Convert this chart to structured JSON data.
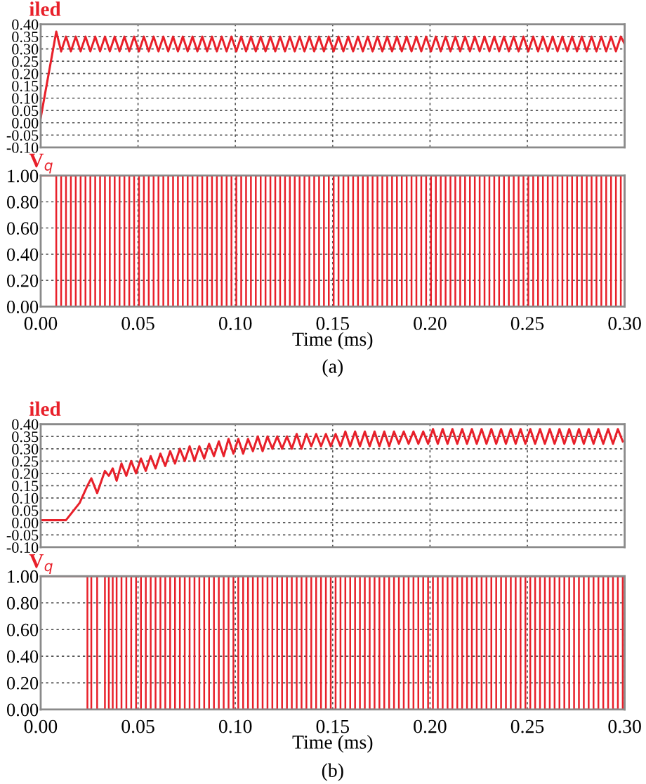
{
  "chart_data": [
    {
      "type": "line",
      "title": "iled",
      "xlim": [
        0,
        0.3
      ],
      "ylim": [
        -0.1,
        0.4
      ],
      "grid": true,
      "tick_labels": "y",
      "xticks": [
        {
          "value": 0,
          "label": null
        },
        {
          "value": 0.05,
          "label": null
        },
        {
          "value": 0.1,
          "label": null
        },
        {
          "value": 0.15,
          "label": null
        },
        {
          "value": 0.2,
          "label": null
        },
        {
          "value": 0.25,
          "label": null
        },
        {
          "value": 0.3,
          "label": null
        }
      ],
      "yticks": [
        {
          "value": -0.1,
          "label": "-0.10"
        },
        {
          "value": -0.05,
          "label": "-0.05"
        },
        {
          "value": 0,
          "label": "0.00"
        },
        {
          "value": 0.05,
          "label": "0.05"
        },
        {
          "value": 0.1,
          "label": "0.10"
        },
        {
          "value": 0.15,
          "label": "0.15"
        },
        {
          "value": 0.2,
          "label": "0.20"
        },
        {
          "value": 0.25,
          "label": "0.25"
        },
        {
          "value": 0.3,
          "label": "0.30"
        },
        {
          "value": 0.35,
          "label": "0.35"
        },
        {
          "value": 0.4,
          "label": "0.40"
        }
      ],
      "x": [
        0,
        0.008,
        0.0105,
        0.013,
        0.0155,
        0.018,
        0.0205,
        0.023,
        0.0255,
        0.028,
        0.0305,
        0.033,
        0.0355,
        0.038,
        0.0405,
        0.043,
        0.0455,
        0.048,
        0.0505,
        0.053,
        0.0555,
        0.058,
        0.0605,
        0.063,
        0.0655,
        0.068,
        0.0705,
        0.073,
        0.0755,
        0.078,
        0.0805,
        0.083,
        0.0855,
        0.088,
        0.0905,
        0.093,
        0.0955,
        0.098,
        0.1005,
        0.103,
        0.1055,
        0.108,
        0.1105,
        0.113,
        0.1155,
        0.118,
        0.1205,
        0.123,
        0.1255,
        0.128,
        0.1305,
        0.133,
        0.1355,
        0.138,
        0.1405,
        0.143,
        0.1455,
        0.148,
        0.1505,
        0.153,
        0.1555,
        0.158,
        0.1605,
        0.163,
        0.1655,
        0.168,
        0.1705,
        0.173,
        0.1755,
        0.178,
        0.1805,
        0.183,
        0.1855,
        0.188,
        0.1905,
        0.193,
        0.1955,
        0.198,
        0.2005,
        0.203,
        0.2055,
        0.208,
        0.2105,
        0.213,
        0.2155,
        0.218,
        0.2205,
        0.223,
        0.2255,
        0.228,
        0.2305,
        0.233,
        0.2355,
        0.238,
        0.2405,
        0.243,
        0.2455,
        0.248,
        0.2505,
        0.253,
        0.2555,
        0.258,
        0.2605,
        0.263,
        0.2655,
        0.268,
        0.2705,
        0.273,
        0.2755,
        0.278,
        0.2805,
        0.283,
        0.2855,
        0.288,
        0.2905,
        0.293,
        0.2955,
        0.298,
        0.3
      ],
      "series": [
        {
          "color": "#e8202a",
          "values": [
            0.02,
            0.37,
            0.29,
            0.35,
            0.29,
            0.35,
            0.29,
            0.35,
            0.29,
            0.35,
            0.29,
            0.35,
            0.29,
            0.35,
            0.29,
            0.35,
            0.29,
            0.35,
            0.29,
            0.35,
            0.29,
            0.35,
            0.29,
            0.35,
            0.29,
            0.35,
            0.29,
            0.35,
            0.29,
            0.35,
            0.29,
            0.35,
            0.29,
            0.35,
            0.29,
            0.35,
            0.29,
            0.35,
            0.29,
            0.35,
            0.29,
            0.35,
            0.29,
            0.35,
            0.29,
            0.35,
            0.29,
            0.35,
            0.29,
            0.35,
            0.29,
            0.35,
            0.29,
            0.35,
            0.29,
            0.35,
            0.29,
            0.35,
            0.29,
            0.35,
            0.29,
            0.35,
            0.29,
            0.35,
            0.29,
            0.35,
            0.29,
            0.35,
            0.29,
            0.35,
            0.29,
            0.35,
            0.29,
            0.35,
            0.29,
            0.35,
            0.29,
            0.35,
            0.29,
            0.35,
            0.29,
            0.35,
            0.29,
            0.35,
            0.29,
            0.35,
            0.29,
            0.35,
            0.29,
            0.35,
            0.29,
            0.35,
            0.29,
            0.35,
            0.29,
            0.35,
            0.29,
            0.35,
            0.29,
            0.35,
            0.29,
            0.35,
            0.29,
            0.35,
            0.29,
            0.35,
            0.29,
            0.35,
            0.29,
            0.35,
            0.29,
            0.35,
            0.29,
            0.35,
            0.29,
            0.35,
            0.29,
            0.35,
            0.32
          ]
        }
      ]
    },
    {
      "type": "step",
      "title": "V$_{q}$",
      "xlabel": "Time (ms)",
      "annotations": [
        "(a)"
      ],
      "xlim": [
        0,
        0.3
      ],
      "ylim": [
        0,
        1
      ],
      "grid": true,
      "xticks": [
        {
          "value": 0,
          "label": "0.00"
        },
        {
          "value": 0.05,
          "label": "0.05"
        },
        {
          "value": 0.1,
          "label": "0.10"
        },
        {
          "value": 0.15,
          "label": "0.15"
        },
        {
          "value": 0.2,
          "label": "0.20"
        },
        {
          "value": 0.25,
          "label": "0.25"
        },
        {
          "value": 0.3,
          "label": "0.30"
        }
      ],
      "yticks": [
        {
          "value": 0,
          "label": "0.00"
        },
        {
          "value": 0.2,
          "label": "0.20"
        },
        {
          "value": 0.4,
          "label": "0.40"
        },
        {
          "value": 0.6,
          "label": "0.60"
        },
        {
          "value": 0.8,
          "label": "0.80"
        },
        {
          "value": 1,
          "label": "1.00"
        }
      ],
      "x": [
        0,
        0.008,
        0.0105,
        0.013,
        0.0155,
        0.018,
        0.0205,
        0.023,
        0.0255,
        0.028,
        0.0305,
        0.033,
        0.0355,
        0.038,
        0.0405,
        0.043,
        0.0455,
        0.048,
        0.0505,
        0.053,
        0.0555,
        0.058,
        0.0605,
        0.063,
        0.0655,
        0.068,
        0.0705,
        0.073,
        0.0755,
        0.078,
        0.0805,
        0.083,
        0.0855,
        0.088,
        0.0905,
        0.093,
        0.0955,
        0.098,
        0.1005,
        0.103,
        0.1055,
        0.108,
        0.1105,
        0.113,
        0.1155,
        0.118,
        0.1205,
        0.123,
        0.1255,
        0.128,
        0.1305,
        0.133,
        0.1355,
        0.138,
        0.1405,
        0.143,
        0.1455,
        0.148,
        0.1505,
        0.153,
        0.1555,
        0.158,
        0.1605,
        0.163,
        0.1655,
        0.168,
        0.1705,
        0.173,
        0.1755,
        0.178,
        0.1805,
        0.183,
        0.1855,
        0.188,
        0.1905,
        0.193,
        0.1955,
        0.198,
        0.2005,
        0.203,
        0.2055,
        0.208,
        0.2105,
        0.213,
        0.2155,
        0.218,
        0.2205,
        0.223,
        0.2255,
        0.228,
        0.2305,
        0.233,
        0.2355,
        0.238,
        0.2405,
        0.243,
        0.2455,
        0.248,
        0.2505,
        0.253,
        0.2555,
        0.258,
        0.2605,
        0.263,
        0.2655,
        0.268,
        0.2705,
        0.273,
        0.2755,
        0.278,
        0.2805,
        0.283,
        0.2855,
        0.288,
        0.2905,
        0.293,
        0.2955,
        0.298,
        0.3
      ],
      "series": [
        {
          "color": "#e8202a",
          "values": [
            1,
            0,
            1,
            0,
            1,
            0,
            1,
            0,
            1,
            0,
            1,
            0,
            1,
            0,
            1,
            0,
            1,
            0,
            1,
            0,
            1,
            0,
            1,
            0,
            1,
            0,
            1,
            0,
            1,
            0,
            1,
            0,
            1,
            0,
            1,
            0,
            1,
            0,
            1,
            0,
            1,
            0,
            1,
            0,
            1,
            0,
            1,
            0,
            1,
            0,
            1,
            0,
            1,
            0,
            1,
            0,
            1,
            0,
            1,
            0,
            1,
            0,
            1,
            0,
            1,
            0,
            1,
            0,
            1,
            0,
            1,
            0,
            1,
            0,
            1,
            0,
            1,
            0,
            1,
            0,
            1,
            0,
            1,
            0,
            1,
            0,
            1,
            0,
            1,
            0,
            1,
            0,
            1,
            0,
            1,
            0,
            1,
            0,
            1,
            0,
            1,
            0,
            1,
            0,
            1,
            0,
            1,
            0,
            1,
            0,
            1,
            0,
            1,
            0,
            1,
            0,
            1,
            0,
            1
          ]
        }
      ]
    },
    {
      "type": "line",
      "title": "iled",
      "xlim": [
        0,
        0.3
      ],
      "ylim": [
        -0.1,
        0.4
      ],
      "grid": true,
      "tick_labels": "y",
      "xticks": [
        {
          "value": 0,
          "label": null
        },
        {
          "value": 0.05,
          "label": null
        },
        {
          "value": 0.1,
          "label": null
        },
        {
          "value": 0.15,
          "label": null
        },
        {
          "value": 0.2,
          "label": null
        },
        {
          "value": 0.25,
          "label": null
        },
        {
          "value": 0.3,
          "label": null
        }
      ],
      "yticks": [
        {
          "value": -0.1,
          "label": "-0.10"
        },
        {
          "value": -0.05,
          "label": "-0.05"
        },
        {
          "value": 0,
          "label": "0.00"
        },
        {
          "value": 0.05,
          "label": "0.05"
        },
        {
          "value": 0.1,
          "label": "0.10"
        },
        {
          "value": 0.15,
          "label": "0.15"
        },
        {
          "value": 0.2,
          "label": "0.20"
        },
        {
          "value": 0.25,
          "label": "0.25"
        },
        {
          "value": 0.3,
          "label": "0.30"
        },
        {
          "value": 0.35,
          "label": "0.35"
        },
        {
          "value": 0.4,
          "label": "0.40"
        }
      ],
      "x": [
        0,
        0.013,
        0.02,
        0.024,
        0.026,
        0.029,
        0.033,
        0.035,
        0.037,
        0.039,
        0.0415,
        0.044,
        0.0465,
        0.049,
        0.0515,
        0.054,
        0.0565,
        0.059,
        0.0615,
        0.064,
        0.0665,
        0.069,
        0.0715,
        0.074,
        0.0765,
        0.079,
        0.0815,
        0.084,
        0.0865,
        0.089,
        0.0915,
        0.094,
        0.0965,
        0.099,
        0.1015,
        0.104,
        0.1065,
        0.109,
        0.1115,
        0.114,
        0.1165,
        0.119,
        0.1215,
        0.124,
        0.1265,
        0.129,
        0.1315,
        0.134,
        0.1365,
        0.139,
        0.1415,
        0.144,
        0.1465,
        0.149,
        0.1515,
        0.154,
        0.1565,
        0.159,
        0.1615,
        0.164,
        0.1665,
        0.169,
        0.1715,
        0.174,
        0.1765,
        0.179,
        0.1815,
        0.184,
        0.1865,
        0.189,
        0.1915,
        0.194,
        0.1965,
        0.199,
        0.2015,
        0.204,
        0.2065,
        0.209,
        0.2115,
        0.214,
        0.2165,
        0.219,
        0.2215,
        0.224,
        0.2265,
        0.229,
        0.2315,
        0.234,
        0.2365,
        0.239,
        0.2415,
        0.244,
        0.2465,
        0.249,
        0.2515,
        0.254,
        0.2565,
        0.259,
        0.2615,
        0.264,
        0.2665,
        0.269,
        0.2715,
        0.274,
        0.2765,
        0.279,
        0.2815,
        0.284,
        0.2865,
        0.289,
        0.2915,
        0.294,
        0.2965,
        0.299
      ],
      "series": [
        {
          "color": "#e8202a",
          "values": [
            0.01,
            0.01,
            0.08,
            0.15,
            0.18,
            0.12,
            0.21,
            0.19,
            0.22,
            0.17,
            0.24,
            0.19,
            0.25,
            0.2,
            0.26,
            0.21,
            0.27,
            0.22,
            0.28,
            0.23,
            0.29,
            0.24,
            0.3,
            0.25,
            0.31,
            0.25,
            0.31,
            0.26,
            0.32,
            0.27,
            0.33,
            0.27,
            0.34,
            0.28,
            0.34,
            0.28,
            0.34,
            0.29,
            0.35,
            0.29,
            0.35,
            0.3,
            0.35,
            0.3,
            0.35,
            0.3,
            0.36,
            0.3,
            0.36,
            0.31,
            0.36,
            0.31,
            0.36,
            0.31,
            0.36,
            0.31,
            0.37,
            0.31,
            0.37,
            0.31,
            0.37,
            0.31,
            0.37,
            0.31,
            0.37,
            0.31,
            0.37,
            0.32,
            0.37,
            0.32,
            0.37,
            0.32,
            0.37,
            0.32,
            0.38,
            0.32,
            0.38,
            0.32,
            0.38,
            0.32,
            0.38,
            0.32,
            0.38,
            0.32,
            0.38,
            0.32,
            0.38,
            0.32,
            0.38,
            0.32,
            0.38,
            0.32,
            0.38,
            0.32,
            0.38,
            0.32,
            0.38,
            0.32,
            0.38,
            0.32,
            0.38,
            0.32,
            0.38,
            0.32,
            0.38,
            0.32,
            0.38,
            0.32,
            0.38,
            0.32,
            0.38,
            0.32,
            0.38,
            0.33
          ]
        }
      ]
    },
    {
      "type": "step",
      "title": "V$_{q}$",
      "xlabel": "Time (ms)",
      "annotations": [
        "(b)"
      ],
      "xlim": [
        0,
        0.3
      ],
      "ylim": [
        0,
        1
      ],
      "grid": true,
      "xticks": [
        {
          "value": 0,
          "label": "0.00"
        },
        {
          "value": 0.05,
          "label": "0.05"
        },
        {
          "value": 0.1,
          "label": "0.10"
        },
        {
          "value": 0.15,
          "label": "0.15"
        },
        {
          "value": 0.2,
          "label": "0.20"
        },
        {
          "value": 0.25,
          "label": "0.25"
        },
        {
          "value": 0.3,
          "label": "0.30"
        }
      ],
      "yticks": [
        {
          "value": 0,
          "label": "0.00"
        },
        {
          "value": 0.2,
          "label": "0.20"
        },
        {
          "value": 0.4,
          "label": "0.40"
        },
        {
          "value": 0.6,
          "label": "0.60"
        },
        {
          "value": 0.8,
          "label": "0.80"
        },
        {
          "value": 1,
          "label": "1.00"
        }
      ],
      "x": [
        0,
        0.013,
        0.02,
        0.024,
        0.026,
        0.029,
        0.033,
        0.035,
        0.037,
        0.039,
        0.0415,
        0.044,
        0.0465,
        0.049,
        0.0515,
        0.054,
        0.0565,
        0.059,
        0.0615,
        0.064,
        0.0665,
        0.069,
        0.0715,
        0.074,
        0.0765,
        0.079,
        0.0815,
        0.084,
        0.0865,
        0.089,
        0.0915,
        0.094,
        0.0965,
        0.099,
        0.1015,
        0.104,
        0.1065,
        0.109,
        0.1115,
        0.114,
        0.1165,
        0.119,
        0.1215,
        0.124,
        0.1265,
        0.129,
        0.1315,
        0.134,
        0.1365,
        0.139,
        0.1415,
        0.144,
        0.1465,
        0.149,
        0.1515,
        0.154,
        0.1565,
        0.159,
        0.1615,
        0.164,
        0.1665,
        0.169,
        0.1715,
        0.174,
        0.1765,
        0.179,
        0.1815,
        0.184,
        0.1865,
        0.189,
        0.1915,
        0.194,
        0.1965,
        0.199,
        0.2015,
        0.204,
        0.2065,
        0.209,
        0.2115,
        0.214,
        0.2165,
        0.219,
        0.2215,
        0.224,
        0.2265,
        0.229,
        0.2315,
        0.234,
        0.2365,
        0.239,
        0.2415,
        0.244,
        0.2465,
        0.249,
        0.2515,
        0.254,
        0.2565,
        0.259,
        0.2615,
        0.264,
        0.2665,
        0.269,
        0.2715,
        0.274,
        0.2765,
        0.279,
        0.2815,
        0.284,
        0.2865,
        0.289,
        0.2915,
        0.294,
        0.2965,
        0.299
      ],
      "series": [
        {
          "color": "#e8202a",
          "values": [
            1,
            1,
            1,
            0,
            1,
            0,
            1,
            0,
            1,
            0,
            1,
            0,
            1,
            0,
            1,
            0,
            1,
            0,
            1,
            0,
            1,
            0,
            1,
            0,
            1,
            0,
            1,
            0,
            1,
            0,
            1,
            0,
            1,
            0,
            1,
            0,
            1,
            0,
            1,
            0,
            1,
            0,
            1,
            0,
            1,
            0,
            1,
            0,
            1,
            0,
            1,
            0,
            1,
            0,
            1,
            0,
            1,
            0,
            1,
            0,
            1,
            0,
            1,
            0,
            1,
            0,
            1,
            0,
            1,
            0,
            1,
            0,
            1,
            0,
            1,
            0,
            1,
            0,
            1,
            0,
            1,
            0,
            1,
            0,
            1,
            0,
            1,
            0,
            1,
            0,
            1,
            0,
            1,
            0,
            1,
            0,
            1,
            0,
            1,
            0,
            1,
            0,
            1,
            0,
            1,
            0,
            1,
            0,
            1,
            0,
            1,
            0,
            1,
            0
          ]
        }
      ]
    }
  ]
}
